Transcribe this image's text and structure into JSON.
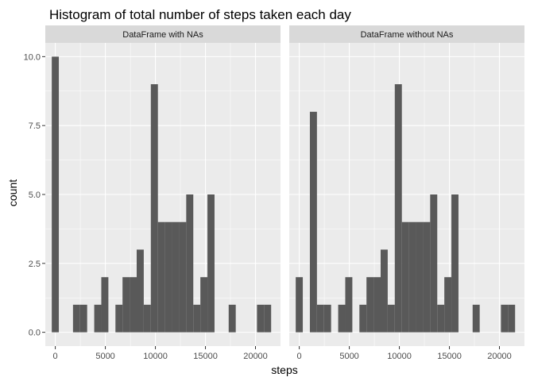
{
  "chart_data": {
    "type": "bar",
    "title": "Histogram of total number of steps taken each day",
    "xlabel": "steps",
    "ylabel": "count",
    "xlim": [
      -1000,
      22500
    ],
    "ylim": [
      -0.5,
      10.5
    ],
    "x_ticks": [
      0,
      5000,
      10000,
      15000,
      20000
    ],
    "x_tick_labels": [
      "0",
      "5000",
      "10000",
      "15000",
      "20000"
    ],
    "y_ticks": [
      0,
      2.5,
      5,
      7.5,
      10
    ],
    "y_tick_labels": [
      "0.0",
      "2.5",
      "5.0",
      "7.5",
      "10.0"
    ],
    "grid": true,
    "bin_width": 707,
    "bin_centers": [
      0,
      707,
      1414,
      2121,
      2828,
      3535,
      4242,
      4949,
      5656,
      6363,
      7070,
      7777,
      8484,
      9191,
      9898,
      10605,
      11312,
      12019,
      12726,
      13433,
      14140,
      14847,
      15554,
      16261,
      16968,
      17675,
      18382,
      19089,
      19796,
      20503,
      21210
    ],
    "panels": [
      {
        "strip": "DataFrame with NAs",
        "counts": [
          10,
          0,
          0,
          1,
          1,
          0,
          1,
          2,
          0,
          1,
          2,
          2,
          3,
          1,
          9,
          4,
          4,
          4,
          4,
          5,
          1,
          2,
          5,
          0,
          0,
          1,
          0,
          0,
          0,
          1,
          1
        ]
      },
      {
        "strip": "DataFrame without NAs",
        "counts": [
          2,
          0,
          8,
          1,
          1,
          0,
          1,
          2,
          0,
          1,
          2,
          2,
          3,
          1,
          9,
          4,
          4,
          4,
          4,
          5,
          1,
          2,
          5,
          0,
          0,
          1,
          0,
          0,
          0,
          1,
          1
        ]
      }
    ],
    "colors": {
      "bar_fill": "#595959",
      "panel_background": "#ebebeb",
      "strip_background": "#d9d9d9",
      "grid_major": "#ffffff"
    }
  }
}
